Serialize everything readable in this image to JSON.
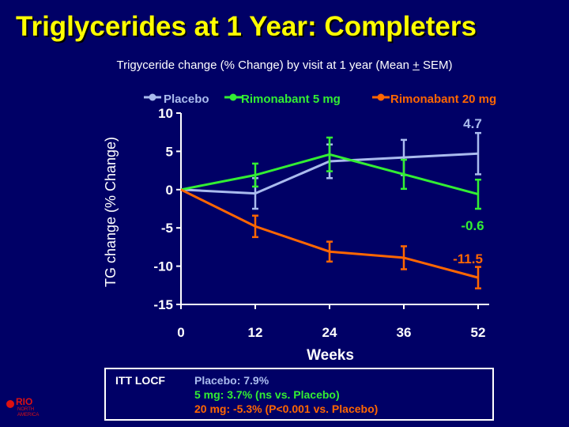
{
  "slide": {
    "title": "Triglycerides at 1 Year: Completers",
    "subtitle_main": "Trigyceride change (% Change) by visit at 1 year (Mean ",
    "subtitle_pm": "+",
    "subtitle_end": " SEM)"
  },
  "chart_data": {
    "type": "line",
    "ylabel": "TG change (% Change)",
    "xlabel": "Weeks",
    "x_categories": [
      "0",
      "12",
      "24",
      "36",
      "52"
    ],
    "yticks": [
      "10",
      "5",
      "0",
      "-5",
      "-10",
      "-15"
    ],
    "ylim": [
      -15,
      10
    ],
    "legend_position": "top",
    "series": [
      {
        "name": "Placebo",
        "color": "#aabbee",
        "values": [
          0,
          -0.5,
          3.7,
          4.2,
          4.7
        ],
        "errors": [
          0,
          2.0,
          2.2,
          2.3,
          2.7
        ],
        "end_label": "4.7"
      },
      {
        "name": "Rimonabant 5 mg",
        "color": "#33ee33",
        "values": [
          0,
          1.9,
          4.6,
          2.0,
          -0.6
        ],
        "errors": [
          0,
          1.5,
          2.2,
          1.9,
          1.9
        ],
        "end_label": "-0.6"
      },
      {
        "name": "Rimonabant 20 mg",
        "color": "#ff6600",
        "values": [
          0,
          -4.8,
          -8.1,
          -8.9,
          -11.5
        ],
        "errors": [
          0,
          1.4,
          1.3,
          1.5,
          1.4
        ],
        "end_label": "-11.5"
      }
    ]
  },
  "footnote": {
    "label": "ITT LOCF",
    "line1": "Placebo: 7.9%",
    "line2": "5 mg: 3.7% (ns vs. Placebo)",
    "line3": "20 mg: -5.3% (P<0.001 vs. Placebo)"
  },
  "logo": {
    "name": "RIO",
    "line1": "NORTH",
    "line2": "AMERICA"
  }
}
